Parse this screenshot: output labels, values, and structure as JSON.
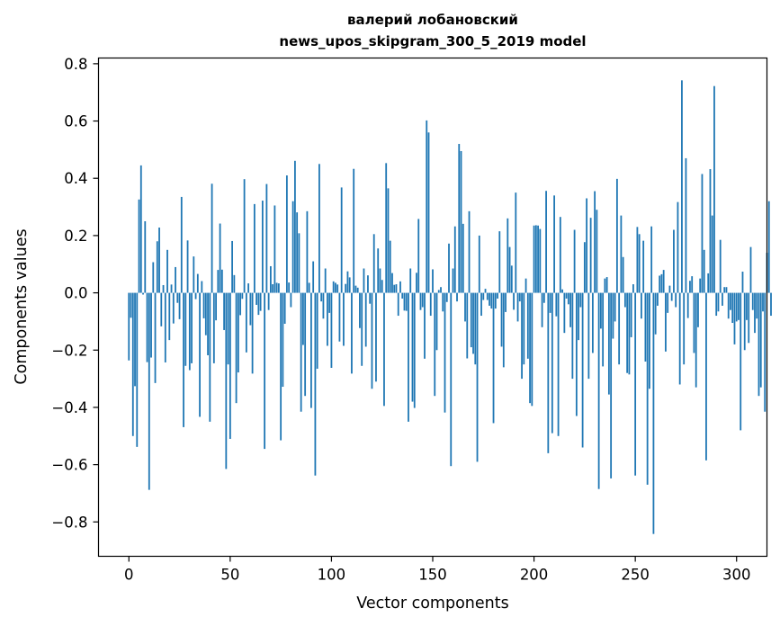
{
  "chart_data": {
    "type": "bar",
    "title": "валерий лобановский",
    "subtitle": "news_upos_skipgram_300_5_2019 model",
    "xlabel": "Vector components",
    "ylabel": "Components values",
    "xlim": [
      -15,
      315
    ],
    "ylim": [
      -0.92,
      0.82
    ],
    "xticks": [
      0,
      50,
      100,
      150,
      200,
      250,
      300
    ],
    "yticks": [
      -0.8,
      -0.6,
      -0.4,
      -0.2,
      0.0,
      0.2,
      0.4,
      0.6,
      0.8
    ],
    "bar_color": "#1f77b4",
    "grid": false,
    "values": [
      -0.236,
      -0.087,
      -0.5,
      -0.326,
      -0.538,
      0.326,
      0.445,
      -0.006,
      0.25,
      -0.242,
      -0.688,
      -0.226,
      0.107,
      -0.315,
      0.18,
      0.228,
      -0.117,
      0.027,
      -0.243,
      0.15,
      -0.165,
      0.029,
      -0.107,
      0.09,
      -0.035,
      -0.092,
      0.335,
      -0.469,
      -0.255,
      0.183,
      -0.27,
      -0.246,
      0.127,
      -0.022,
      0.066,
      -0.433,
      0.041,
      -0.089,
      -0.148,
      -0.218,
      -0.45,
      0.381,
      -0.246,
      -0.096,
      0.08,
      0.242,
      0.081,
      -0.13,
      -0.615,
      -0.25,
      -0.51,
      0.181,
      0.062,
      -0.385,
      -0.278,
      -0.078,
      -0.021,
      0.397,
      -0.208,
      0.033,
      -0.113,
      -0.282,
      0.31,
      -0.042,
      -0.077,
      -0.063,
      0.322,
      -0.545,
      0.38,
      -0.06,
      0.093,
      0.03,
      0.305,
      0.035,
      0.033,
      -0.515,
      -0.328,
      -0.108,
      0.41,
      0.036,
      -0.05,
      0.32,
      0.461,
      0.281,
      0.208,
      -0.415,
      -0.182,
      -0.36,
      0.285,
      0.035,
      -0.402,
      0.11,
      -0.638,
      -0.265,
      0.45,
      -0.03,
      -0.09,
      0.085,
      -0.185,
      -0.07,
      -0.262,
      0.04,
      0.035,
      0.029,
      -0.17,
      0.368,
      -0.185,
      0.031,
      0.075,
      0.054,
      -0.282,
      0.433,
      0.025,
      0.018,
      -0.123,
      -0.255,
      0.085,
      -0.188,
      0.061,
      -0.038,
      -0.335,
      0.205,
      -0.31,
      0.155,
      0.085,
      0.045,
      -0.395,
      0.453,
      0.365,
      0.182,
      0.069,
      0.028,
      0.03,
      -0.08,
      0.04,
      -0.02,
      -0.062,
      -0.063,
      -0.45,
      0.085,
      -0.38,
      -0.402,
      0.07,
      0.258,
      -0.06,
      -0.05,
      -0.23,
      0.602,
      0.56,
      -0.08,
      0.082,
      -0.36,
      -0.2,
      0.01,
      0.02,
      -0.065,
      -0.418,
      -0.032,
      0.172,
      -0.605,
      0.085,
      0.232,
      -0.03,
      0.52,
      0.495,
      0.241,
      -0.1,
      -0.229,
      0.285,
      -0.19,
      -0.213,
      -0.25,
      -0.59,
      0.2,
      -0.08,
      -0.025,
      0.014,
      -0.025,
      -0.045,
      -0.055,
      -0.455,
      -0.055,
      -0.02,
      0.215,
      -0.188,
      -0.26,
      -0.067,
      0.26,
      0.16,
      0.095,
      -0.059,
      0.35,
      -0.1,
      -0.03,
      -0.3,
      -0.25,
      0.05,
      -0.23,
      -0.385,
      -0.395,
      0.235,
      0.236,
      0.235,
      0.223,
      -0.12,
      -0.035,
      0.356,
      -0.56,
      -0.07,
      -0.49,
      0.34,
      -0.082,
      -0.5,
      0.265,
      0.012,
      -0.14,
      -0.02,
      -0.04,
      -0.12,
      -0.3,
      0.22,
      -0.43,
      -0.165,
      -0.05,
      -0.54,
      0.177,
      0.33,
      -0.3,
      0.262,
      -0.21,
      0.355,
      0.29,
      -0.685,
      -0.125,
      -0.257,
      0.05,
      0.055,
      -0.355,
      -0.648,
      -0.16,
      -0.1,
      0.398,
      -0.25,
      0.27,
      0.125,
      -0.05,
      -0.28,
      -0.285,
      -0.155,
      0.03,
      -0.638,
      0.23,
      0.205,
      -0.09,
      0.182,
      -0.24,
      -0.67,
      -0.335,
      0.232,
      -0.842,
      -0.145,
      -0.045,
      0.06,
      0.065,
      0.08,
      -0.205,
      -0.07,
      0.025,
      -0.028,
      0.22,
      -0.05,
      0.317,
      -0.32,
      0.742,
      -0.25,
      0.47,
      -0.088,
      0.042,
      0.058,
      -0.21,
      -0.33,
      -0.12,
      0.05,
      0.415,
      0.15,
      -0.585,
      0.068,
      0.432,
      0.27,
      0.722,
      -0.08,
      -0.065,
      0.185,
      -0.045,
      0.02,
      0.02,
      -0.09,
      -0.06,
      -0.105,
      -0.18,
      -0.1,
      -0.095,
      -0.48,
      0.074,
      -0.2,
      -0.095,
      -0.175,
      0.16,
      -0.06,
      -0.14,
      -0.09,
      -0.36,
      -0.33,
      -0.065,
      -0.415,
      0.14,
      0.32,
      -0.08
    ]
  }
}
